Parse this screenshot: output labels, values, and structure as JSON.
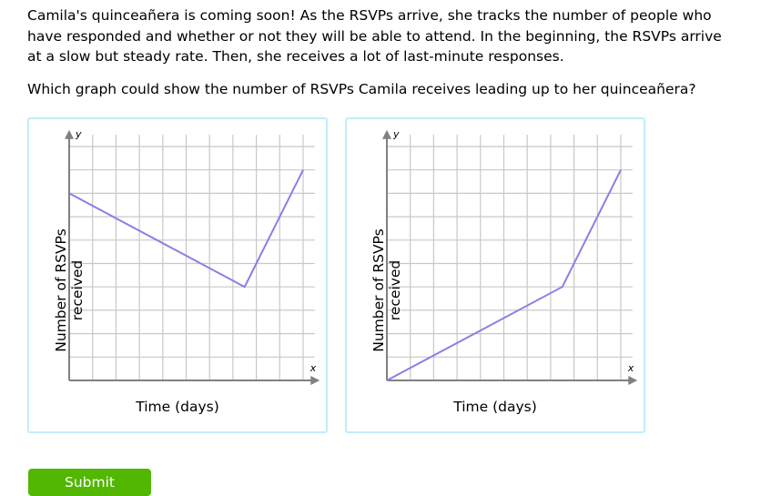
{
  "question": {
    "text": "Camila's quinceañera is coming soon! As the RSVPs arrive, she tracks the number of people who have responded and whether or not they will be able to attend. In the beginning, the RSVPs arrive at a slow but steady rate. Then, she receives a lot of last-minute responses.",
    "prompt": "Which graph could show the number of RSVPs Camila receives leading up to her quinceañera?"
  },
  "chart_data": [
    {
      "type": "line",
      "xlabel": "Time (days)",
      "ylabel": "Number of RSVPs received",
      "x_axis_letter": "x",
      "y_axis_letter": "y",
      "xlim": [
        0,
        10
      ],
      "ylim": [
        0,
        10
      ],
      "grid": true,
      "line_color": "#8a7fe6",
      "points": [
        [
          0,
          8
        ],
        [
          7.5,
          4
        ],
        [
          10,
          9
        ]
      ]
    },
    {
      "type": "line",
      "xlabel": "Time (days)",
      "ylabel": "Number of RSVPs received",
      "x_axis_letter": "x",
      "y_axis_letter": "y",
      "xlim": [
        0,
        10
      ],
      "ylim": [
        0,
        10
      ],
      "grid": true,
      "line_color": "#8a7fe6",
      "points": [
        [
          0,
          0
        ],
        [
          7.5,
          4
        ],
        [
          10,
          9
        ]
      ]
    }
  ],
  "submit_label": "Submit"
}
